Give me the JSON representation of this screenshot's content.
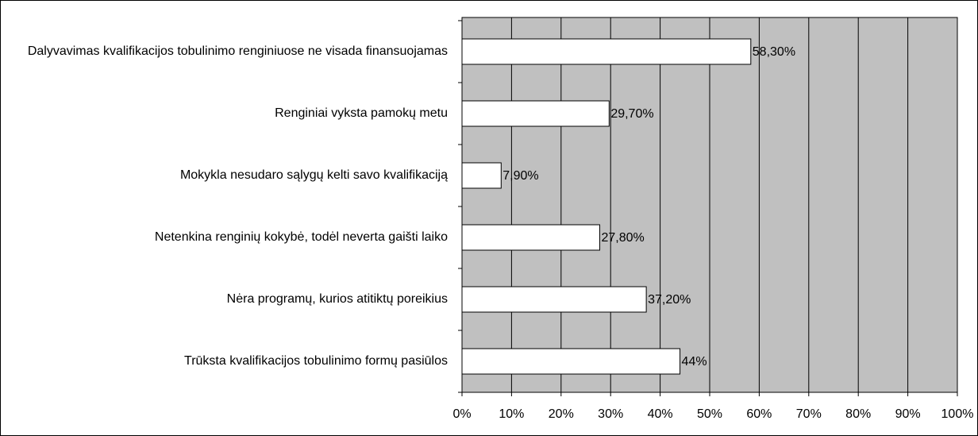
{
  "chart_data": {
    "type": "bar",
    "orientation": "horizontal",
    "categories": [
      "Dalyvavimas kvalifikacijos tobulinimo renginiuose ne visada finansuojamas",
      "Renginiai vyksta pamokų metu",
      "Mokykla nesudaro sąlygų kelti savo kvalifikaciją",
      "Netenkina renginių kokybė, todėl neverta gaišti laiko",
      "Nėra programų, kurios atitiktų poreikius",
      "Trūksta kvalifikacijos tobulinimo formų pasiūlos"
    ],
    "values": [
      58.3,
      29.7,
      7.9,
      27.8,
      37.2,
      44
    ],
    "value_labels": [
      "58,30%",
      "29,70%",
      "7,90%",
      "27,80%",
      "37,20%",
      "44%"
    ],
    "color": "#ffffff",
    "plot_background": "#c0c0c0",
    "xlim": [
      0,
      100
    ],
    "xticks": [
      {
        "value": 0,
        "label": "0%"
      },
      {
        "value": 10,
        "label": "10%"
      },
      {
        "value": 20,
        "label": "20%"
      },
      {
        "value": 30,
        "label": "30%"
      },
      {
        "value": 40,
        "label": "40%"
      },
      {
        "value": 50,
        "label": "50%"
      },
      {
        "value": 60,
        "label": "60%"
      },
      {
        "value": 70,
        "label": "70%"
      },
      {
        "value": 80,
        "label": "80%"
      },
      {
        "value": 90,
        "label": "90%"
      },
      {
        "value": 100,
        "label": "100%"
      }
    ],
    "grid": true
  }
}
